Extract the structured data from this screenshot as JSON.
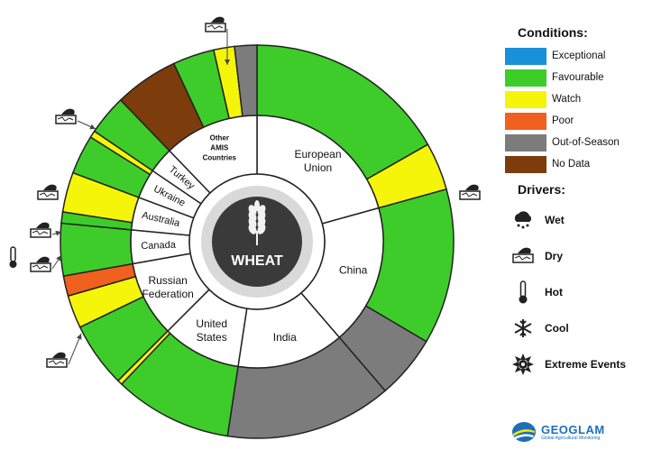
{
  "chart_data": {
    "type": "sunburst",
    "center_label": "WHEAT",
    "countries": [
      {
        "name": "European Union",
        "label_lines": [
          "European",
          "Union"
        ],
        "share": 0.207,
        "conditions": [
          [
            "Favourable",
            0.81
          ],
          [
            "Watch",
            0.19
          ]
        ]
      },
      {
        "name": "China",
        "label_lines": [
          "China"
        ],
        "share": 0.18,
        "conditions": [
          [
            "Favourable",
            0.71
          ],
          [
            "Out-of-Season",
            0.29
          ]
        ]
      },
      {
        "name": "India",
        "label_lines": [
          "India"
        ],
        "share": 0.137,
        "conditions": [
          [
            "Out-of-Season",
            1.0
          ]
        ]
      },
      {
        "name": "United States",
        "label_lines": [
          "United",
          "States"
        ],
        "share": 0.101,
        "conditions": [
          [
            "Favourable",
            0.96
          ],
          [
            "Watch",
            0.04
          ]
        ]
      },
      {
        "name": "Russian Federation",
        "label_lines": [
          "Russian",
          "Federation"
        ],
        "share": 0.097,
        "conditions": [
          [
            "Favourable",
            0.55
          ],
          [
            "Watch",
            0.28
          ],
          [
            "Poor",
            0.17
          ]
        ]
      },
      {
        "name": "Canada",
        "label_lines": [
          "Canada"
        ],
        "share": 0.043,
        "conditions": [
          [
            "Favourable",
            1.0
          ]
        ]
      },
      {
        "name": "Australia",
        "label_lines": [
          "Australia"
        ],
        "share": 0.042,
        "conditions": [
          [
            "Favourable",
            0.22
          ],
          [
            "Watch",
            0.78
          ]
        ]
      },
      {
        "name": "Ukraine",
        "label_lines": [
          "Ukraine"
        ],
        "share": 0.038,
        "conditions": [
          [
            "Favourable",
            0.85
          ],
          [
            "Watch",
            0.15
          ]
        ]
      },
      {
        "name": "Turkey",
        "label_lines": [
          "Turkey"
        ],
        "share": 0.033,
        "conditions": [
          [
            "Favourable",
            1.0
          ]
        ]
      },
      {
        "name": "Other AMIS Countries",
        "label_lines": [
          "Other",
          "AMIS",
          "Countries"
        ],
        "share": 0.122,
        "conditions": [
          [
            "No Data",
            0.43
          ],
          [
            "Favourable",
            0.28
          ],
          [
            "Watch",
            0.14
          ],
          [
            "Out-of-Season",
            0.15
          ]
        ]
      }
    ],
    "driver_markers": [
      "Dry",
      "Dry",
      "Dry",
      "Dry",
      "Dry",
      "Hot",
      "Dry",
      "Dry"
    ]
  },
  "legend": {
    "conditions_title": "Conditions:",
    "conditions": [
      {
        "label": "Exceptional",
        "color": "#1a90d8"
      },
      {
        "label": "Favourable",
        "color": "#3ecc2a"
      },
      {
        "label": "Watch",
        "color": "#f5f50a"
      },
      {
        "label": "Poor",
        "color": "#f0601e"
      },
      {
        "label": "Out-of-Season",
        "color": "#7c7c7c"
      },
      {
        "label": "No Data",
        "color": "#7d3c0c"
      }
    ],
    "drivers_title": "Drivers:",
    "drivers": [
      {
        "label": "Wet",
        "icon": "wet-cloud-icon"
      },
      {
        "label": "Dry",
        "icon": "dry-cracked-ground-icon"
      },
      {
        "label": "Hot",
        "icon": "thermometer-icon"
      },
      {
        "label": "Cool",
        "icon": "snowflake-icon"
      },
      {
        "label": "Extreme Events",
        "icon": "extreme-event-icon"
      }
    ]
  },
  "brand": {
    "name": "GEOGLAM",
    "tagline": "Global Agricultural Monitoring"
  }
}
